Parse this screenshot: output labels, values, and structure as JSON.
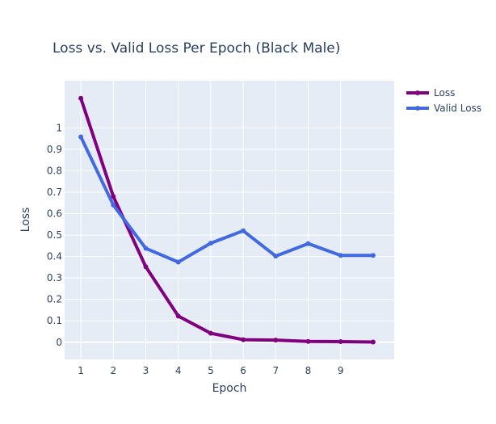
{
  "chart_data": {
    "type": "line",
    "title": "Loss vs. Valid Loss Per Epoch (Black Male)",
    "xlabel": "Epoch",
    "ylabel": "Loss",
    "x": [
      1,
      2,
      3,
      4,
      5,
      6,
      7,
      8,
      9,
      10
    ],
    "x_ticks": [
      "1",
      "2",
      "3",
      "4",
      "5",
      "6",
      "7",
      "8",
      "9"
    ],
    "y_ticks": [
      "0",
      "0.1",
      "0.2",
      "0.3",
      "0.4",
      "0.5",
      "0.6",
      "0.7",
      "0.8",
      "0.9",
      "1"
    ],
    "xlim": [
      0.5,
      10.65
    ],
    "ylim": [
      -0.08,
      1.22
    ],
    "grid": true,
    "legend_position": "top-right",
    "plot_background": "#E5ECF6",
    "series": [
      {
        "name": "Loss",
        "color": "#800080",
        "values": [
          1.138,
          0.68,
          0.352,
          0.122,
          0.042,
          0.012,
          0.01,
          0.004,
          0.003,
          0.001
        ]
      },
      {
        "name": "Valid Loss",
        "color": "#4169E1",
        "values": [
          0.958,
          0.64,
          0.438,
          0.374,
          0.462,
          0.52,
          0.402,
          0.46,
          0.405,
          0.405
        ]
      }
    ]
  }
}
